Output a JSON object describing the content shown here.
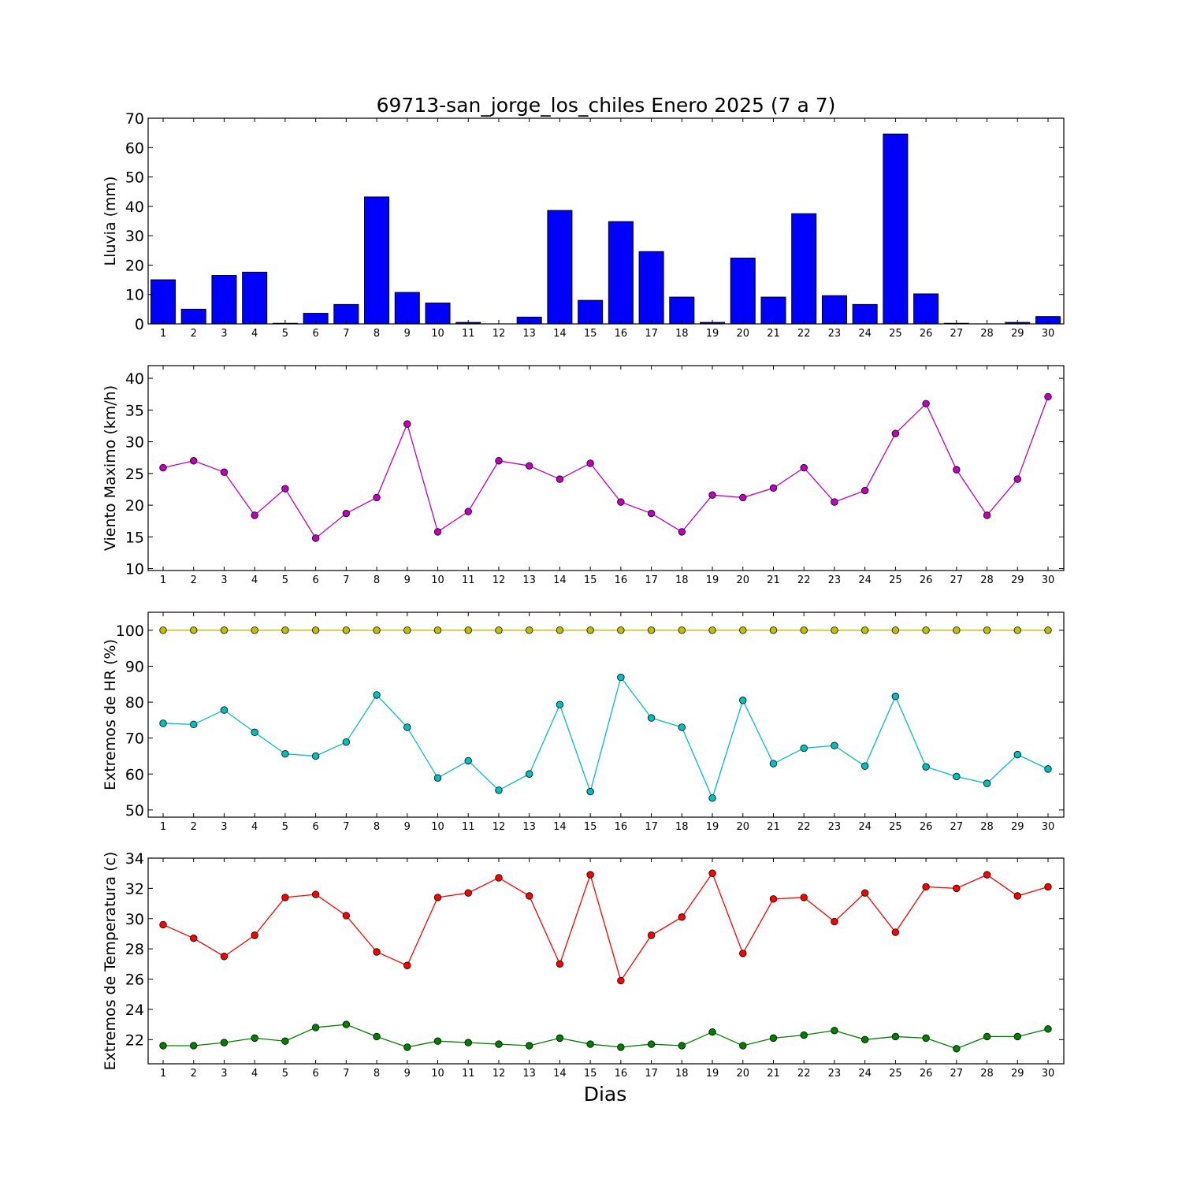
{
  "title": "69713-san_jorge_los_chiles Enero 2025  (7 a 7)",
  "xlabel": "Dias",
  "chart_data": [
    {
      "type": "bar",
      "ylabel": "Lluvia (mm)",
      "categories": [
        "1",
        "2",
        "3",
        "4",
        "5",
        "6",
        "7",
        "8",
        "9",
        "10",
        "11",
        "12",
        "13",
        "14",
        "15",
        "16",
        "17",
        "18",
        "19",
        "20",
        "21",
        "22",
        "23",
        "24",
        "25",
        "26",
        "27",
        "28",
        "29",
        "30"
      ],
      "ylim": [
        0,
        70
      ],
      "yticks": [
        0,
        10,
        20,
        30,
        40,
        50,
        60,
        70
      ],
      "grid": false,
      "series": [
        {
          "color": "#0000ff",
          "values": [
            15.0,
            5.0,
            16.5,
            17.6,
            0.2,
            3.6,
            6.6,
            43.2,
            10.7,
            7.1,
            0.5,
            0.0,
            2.3,
            38.6,
            8.0,
            34.8,
            24.6,
            9.1,
            0.5,
            22.4,
            9.1,
            37.5,
            9.6,
            6.6,
            64.6,
            10.2,
            0.2,
            0.0,
            0.5,
            2.5
          ]
        }
      ]
    },
    {
      "type": "line",
      "ylabel": "Viento Maximo (km/h)",
      "x": [
        1,
        2,
        3,
        4,
        5,
        6,
        7,
        8,
        9,
        10,
        11,
        12,
        13,
        14,
        15,
        16,
        17,
        18,
        19,
        20,
        21,
        22,
        23,
        24,
        25,
        26,
        27,
        28,
        29,
        30
      ],
      "ylim": [
        9.7,
        42
      ],
      "yticks": [
        10,
        15,
        20,
        25,
        30,
        35,
        40
      ],
      "grid": false,
      "series": [
        {
          "color": "#bf00bf",
          "values": [
            25.9,
            27.0,
            25.2,
            18.4,
            22.6,
            14.8,
            18.7,
            21.2,
            32.8,
            15.8,
            19.0,
            27.0,
            26.2,
            24.1,
            26.6,
            20.5,
            18.7,
            15.8,
            21.6,
            21.2,
            22.7,
            25.9,
            20.5,
            22.3,
            31.3,
            36.0,
            25.6,
            18.4,
            24.1,
            37.1
          ]
        }
      ]
    },
    {
      "type": "line",
      "ylabel": "Extremos de HR (%)",
      "x": [
        1,
        2,
        3,
        4,
        5,
        6,
        7,
        8,
        9,
        10,
        11,
        12,
        13,
        14,
        15,
        16,
        17,
        18,
        19,
        20,
        21,
        22,
        23,
        24,
        25,
        26,
        27,
        28,
        29,
        30
      ],
      "ylim": [
        48,
        105
      ],
      "yticks": [
        50,
        60,
        70,
        80,
        90,
        100
      ],
      "grid": false,
      "series": [
        {
          "color": "#bfbf00",
          "values": [
            100,
            100,
            100,
            100,
            100,
            100,
            100,
            100,
            100,
            100,
            100,
            100,
            100,
            100,
            100,
            100,
            100,
            100,
            100,
            100,
            100,
            100,
            100,
            100,
            100,
            100,
            100,
            100,
            100,
            100
          ]
        },
        {
          "color": "#00bfbf",
          "values": [
            74.1,
            73.8,
            77.8,
            71.6,
            65.6,
            65.0,
            68.9,
            82.0,
            73.0,
            58.9,
            63.7,
            55.5,
            60.0,
            79.3,
            55.1,
            86.9,
            75.6,
            73.0,
            53.3,
            80.5,
            62.9,
            67.2,
            67.9,
            62.2,
            81.6,
            62.0,
            59.3,
            57.4,
            65.4,
            61.4
          ]
        }
      ]
    },
    {
      "type": "line",
      "ylabel": "Extremos de Temperatura (c)",
      "x": [
        1,
        2,
        3,
        4,
        5,
        6,
        7,
        8,
        9,
        10,
        11,
        12,
        13,
        14,
        15,
        16,
        17,
        18,
        19,
        20,
        21,
        22,
        23,
        24,
        25,
        26,
        27,
        28,
        29,
        30
      ],
      "ylim": [
        20.4,
        34
      ],
      "yticks": [
        22,
        24,
        26,
        28,
        30,
        32,
        34
      ],
      "grid": false,
      "series": [
        {
          "color": "#ff0000",
          "values": [
            29.6,
            28.7,
            27.5,
            28.9,
            31.4,
            31.6,
            30.2,
            27.8,
            26.9,
            31.4,
            31.7,
            32.7,
            31.5,
            27.0,
            32.9,
            25.9,
            28.9,
            30.1,
            33.0,
            27.7,
            31.3,
            31.4,
            29.8,
            31.7,
            29.1,
            32.1,
            32.0,
            32.9,
            31.5,
            32.1
          ]
        },
        {
          "color": "#008000",
          "values": [
            21.6,
            21.6,
            21.8,
            22.1,
            21.9,
            22.8,
            23.0,
            22.2,
            21.5,
            21.9,
            21.8,
            21.7,
            21.6,
            22.1,
            21.7,
            21.5,
            21.7,
            21.6,
            22.5,
            21.6,
            22.1,
            22.3,
            22.6,
            22.0,
            22.2,
            22.1,
            21.4,
            22.2,
            22.2,
            22.7
          ]
        }
      ]
    }
  ]
}
